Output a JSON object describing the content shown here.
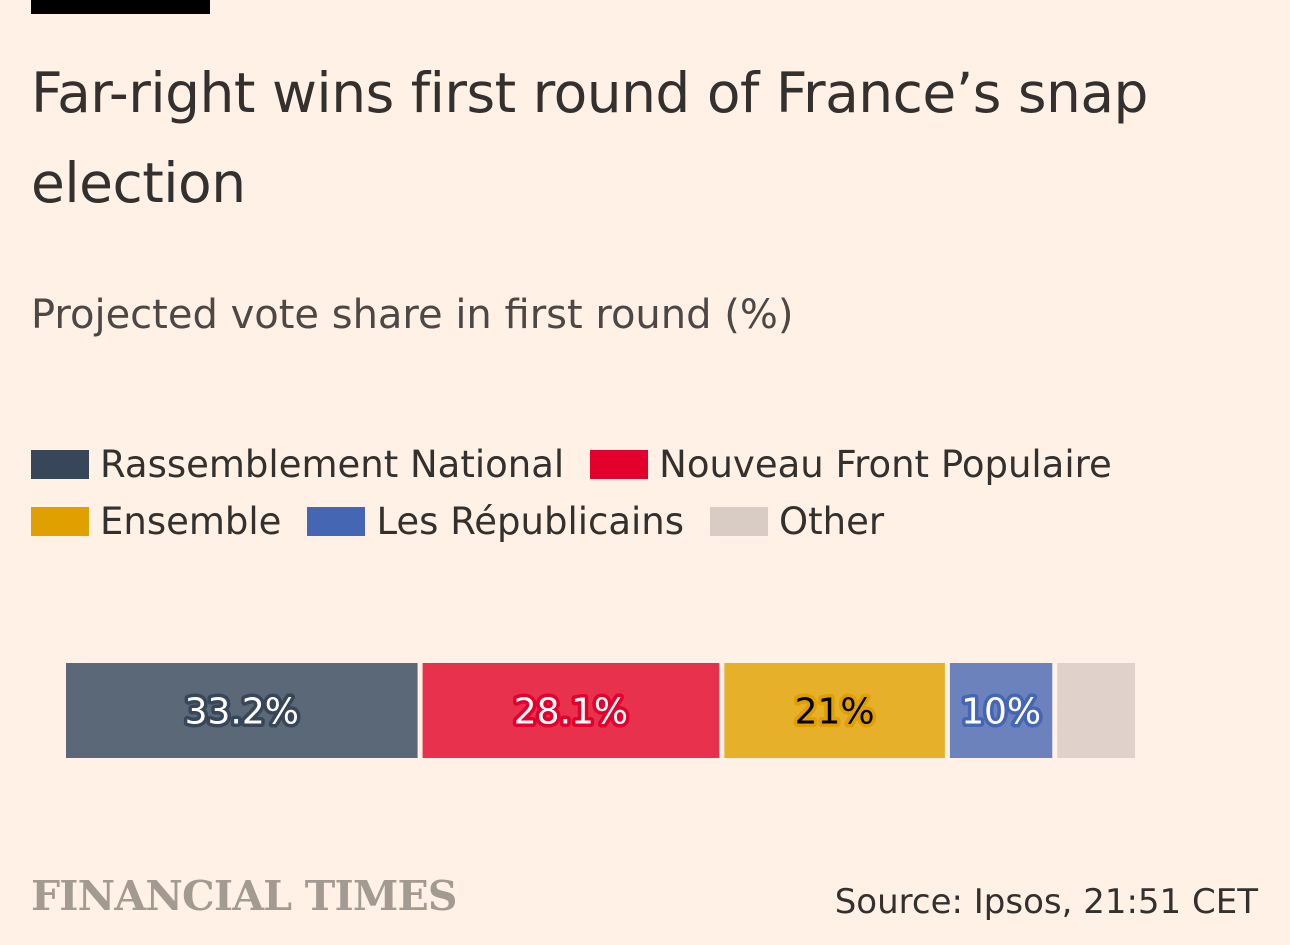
{
  "title": "Far-right wins first round of France’s snap election",
  "subtitle": "Projected vote share in first round (%)",
  "brand": "FINANCIAL TIMES",
  "source": "Source: Ipsos, 21:51 CET",
  "colors": {
    "background": "#fff1e5",
    "text": "#33302e"
  },
  "chart_data": {
    "type": "bar",
    "orientation": "horizontal-stacked",
    "title": "Far-right wins first round of France’s snap election",
    "subtitle": "Projected vote share in first round (%)",
    "categories": [
      "Rassemblement National",
      "Nouveau Front Populaire",
      "Ensemble",
      "Les Républicains",
      "Other"
    ],
    "values": [
      33.2,
      28.1,
      21,
      10,
      7.7
    ],
    "labels": [
      "33.2%",
      "28.1%",
      "21%",
      "10%",
      ""
    ],
    "colors": [
      "#38465a",
      "#e3002c",
      "#e0a000",
      "#4566b3",
      "#d8ccc4"
    ],
    "bar_colors": [
      "#5a6878",
      "#e8324d",
      "#e6b02a",
      "#6b82bd",
      "#e0d2ca"
    ],
    "label_colors": [
      "#ffffff",
      "#ffffff",
      "#000000",
      "#ffffff",
      ""
    ],
    "xlim": [
      0,
      100
    ],
    "grid": false,
    "legend_position": "top-left"
  }
}
